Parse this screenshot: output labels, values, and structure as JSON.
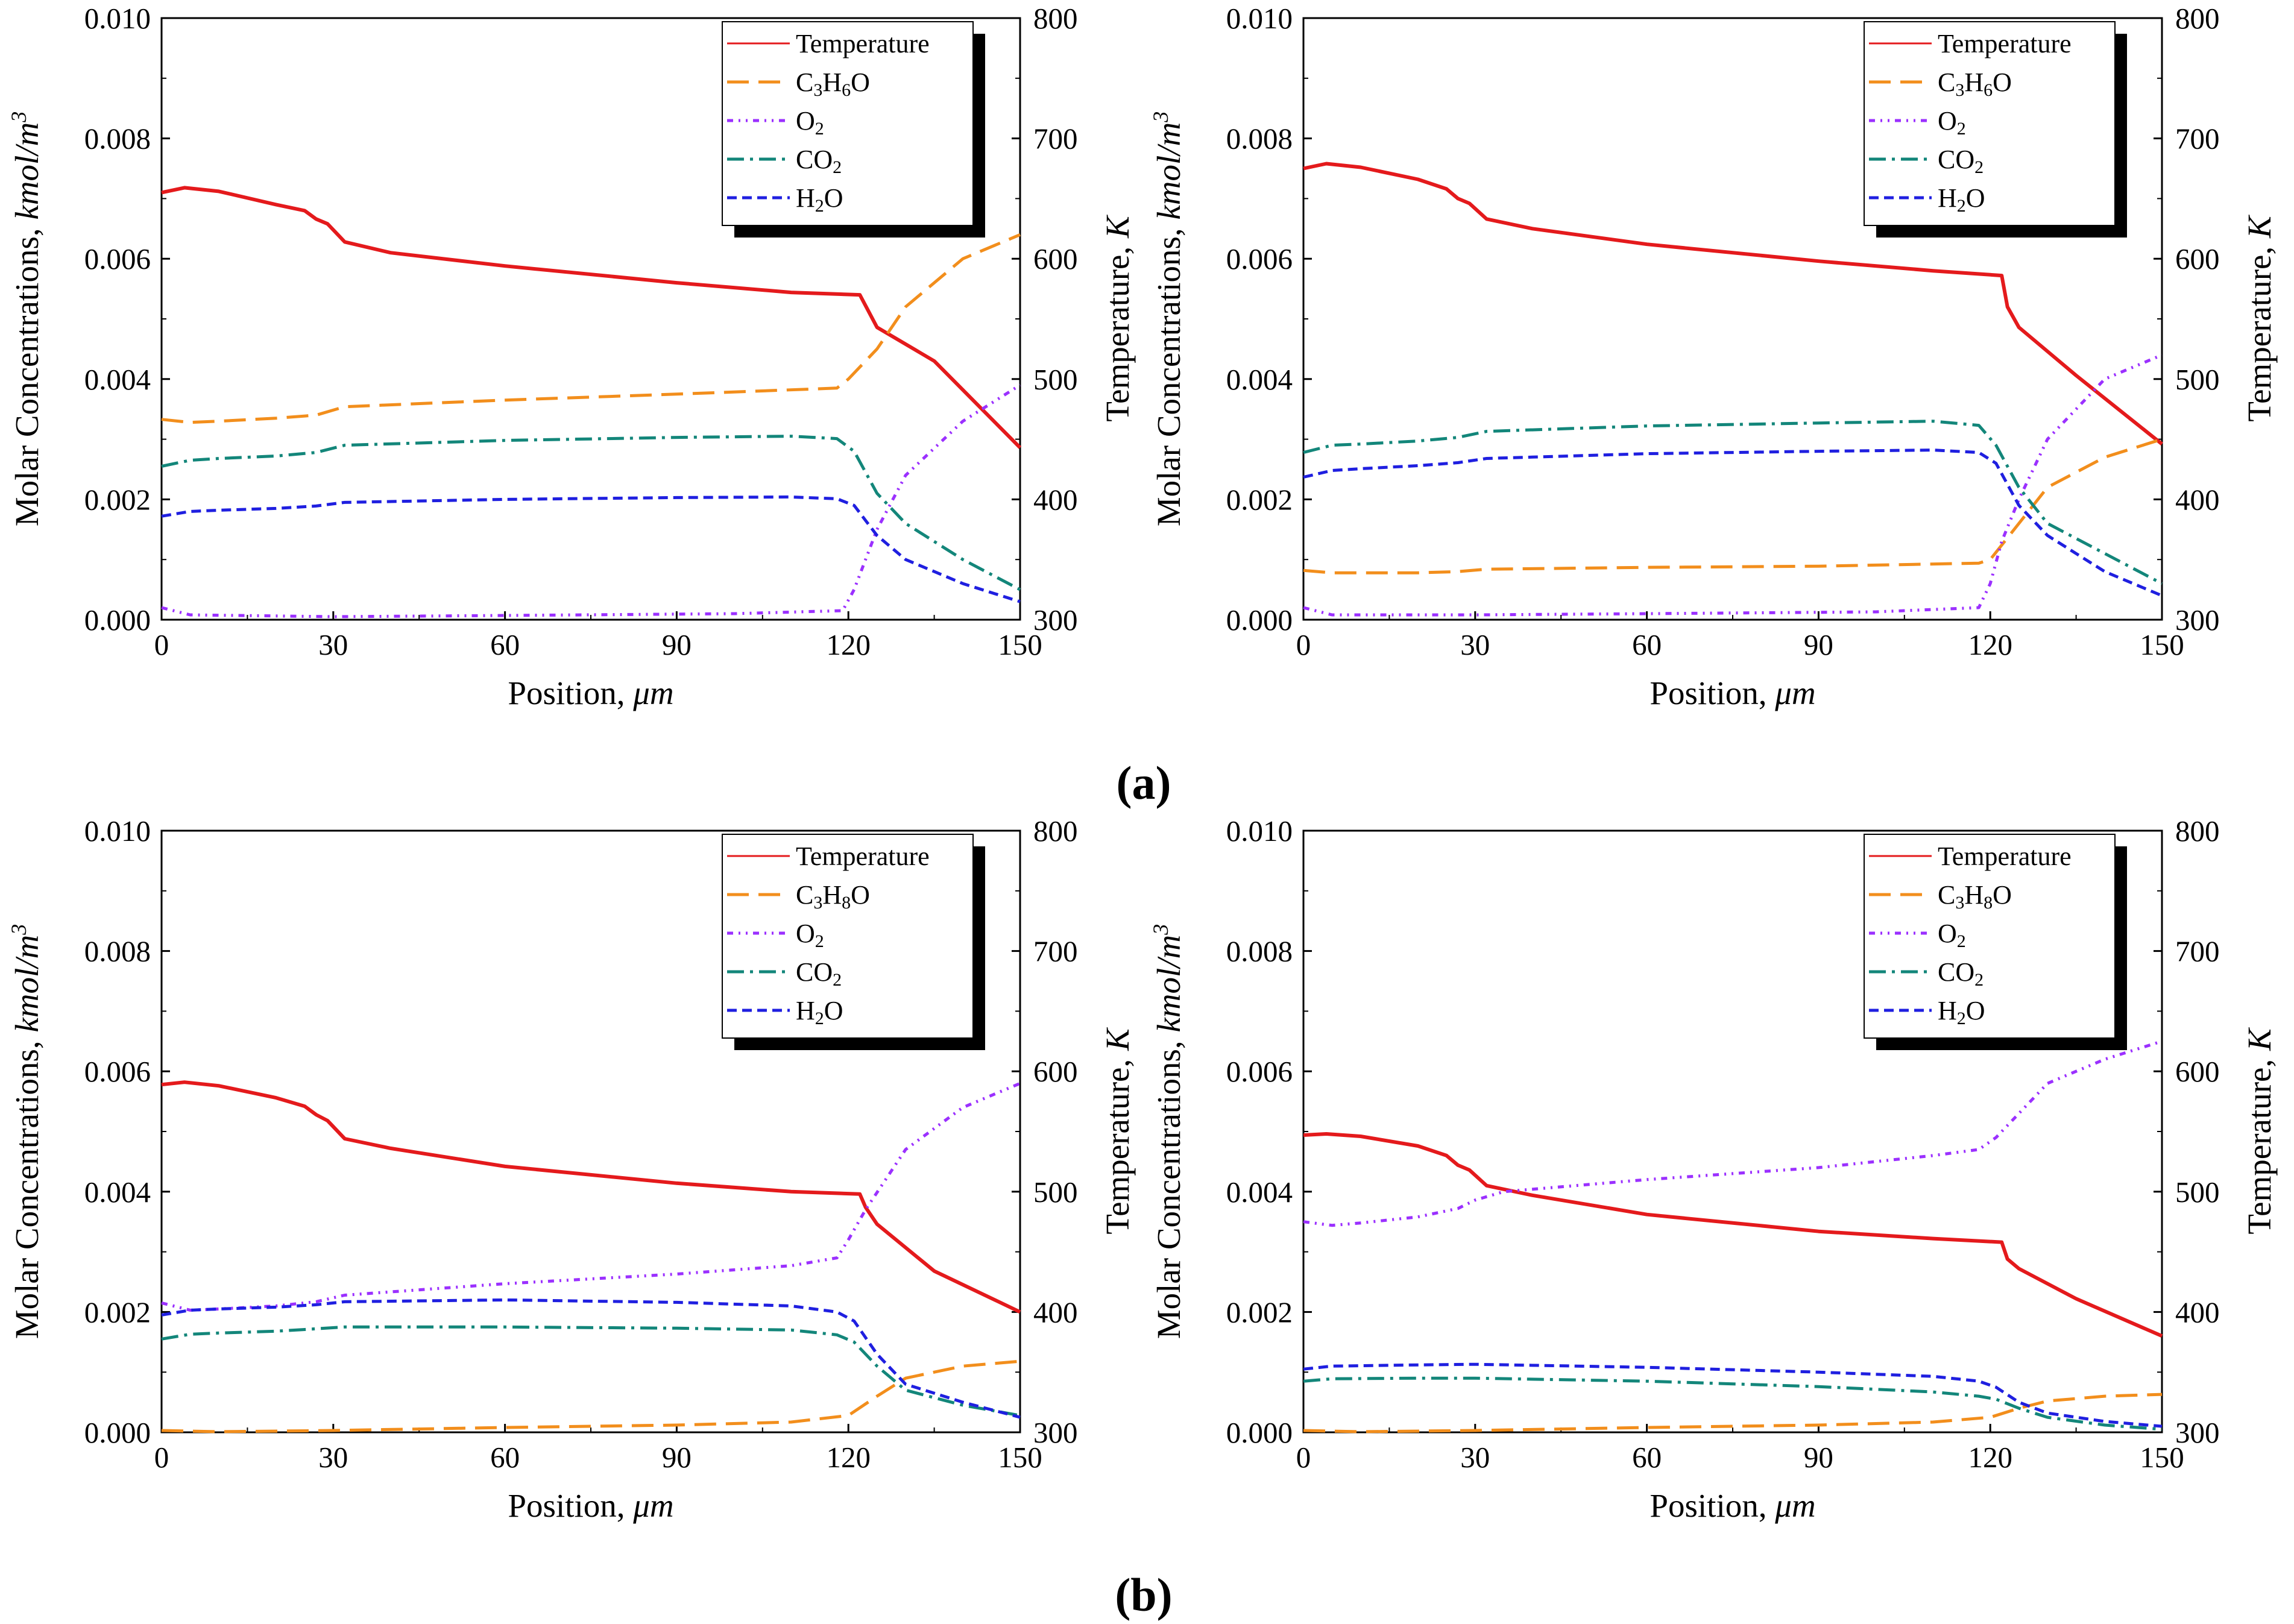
{
  "figure": {
    "label_a": "(a)",
    "label_b": "(b)"
  },
  "colors": {
    "temperature": "#e41a1c",
    "fuel": "#f28e1c",
    "o2": "#9b30ff",
    "co2": "#13867a",
    "h2o": "#1f1fe0"
  },
  "chart_data": [
    {
      "type": "line",
      "panel": "a-left",
      "xlabel_text": "Position, ",
      "xlabel_unit": "μm",
      "ylabel_left_text": "Molar Concentrations, ",
      "ylabel_left_unit": "kmol/m",
      "ylabel_left_sup": "3",
      "ylabel_right_text": "Temperature, ",
      "ylabel_right_unit": "K",
      "xlim": [
        0,
        150
      ],
      "ylim_left": [
        0,
        0.01
      ],
      "ylim_right": [
        300,
        800
      ],
      "xticks": [
        "0",
        "30",
        "60",
        "90",
        "120",
        "150"
      ],
      "yticks_left": [
        "0.000",
        "0.002",
        "0.004",
        "0.006",
        "0.008",
        "0.010"
      ],
      "yticks_right": [
        "300",
        "400",
        "500",
        "600",
        "700",
        "800"
      ],
      "legend": [
        {
          "key": "temperature",
          "label": "Temperature",
          "sub": ""
        },
        {
          "key": "fuel",
          "label": "C3H6O",
          "sub": "C3H6O"
        },
        {
          "key": "o2",
          "label": "O2",
          "sub": "O2"
        },
        {
          "key": "co2",
          "label": "CO2",
          "sub": "CO2"
        },
        {
          "key": "h2o",
          "label": "H2O",
          "sub": "H2O"
        }
      ],
      "series": [
        {
          "key": "temperature",
          "axis": "right",
          "x": [
            0,
            4,
            10,
            20,
            25,
            27,
            29,
            32,
            40,
            60,
            90,
            110,
            122,
            125,
            135,
            150
          ],
          "y": [
            655,
            659,
            656,
            645,
            640,
            633,
            629,
            614,
            605,
            594,
            580,
            572,
            570,
            543,
            515,
            443
          ]
        },
        {
          "key": "fuel",
          "axis": "left",
          "x": [
            0,
            5,
            10,
            20,
            27,
            32,
            60,
            90,
            118,
            120,
            125,
            130,
            140,
            150
          ],
          "y": [
            0.00333,
            0.00328,
            0.0033,
            0.00335,
            0.0034,
            0.00354,
            0.00365,
            0.00375,
            0.00385,
            0.004,
            0.0045,
            0.0052,
            0.006,
            0.0064
          ]
        },
        {
          "key": "o2",
          "axis": "left",
          "x": [
            0,
            5,
            30,
            60,
            100,
            119,
            121,
            125,
            130,
            140,
            150
          ],
          "y": [
            0.0002,
            8e-05,
            5e-05,
            7e-05,
            0.0001,
            0.00015,
            0.0005,
            0.0015,
            0.0024,
            0.0033,
            0.0039
          ]
        },
        {
          "key": "co2",
          "axis": "left",
          "x": [
            0,
            5,
            10,
            20,
            27,
            32,
            60,
            90,
            110,
            118,
            121,
            125,
            130,
            140,
            150
          ],
          "y": [
            0.00255,
            0.00265,
            0.00268,
            0.00272,
            0.00278,
            0.0029,
            0.00298,
            0.00303,
            0.00305,
            0.00301,
            0.0028,
            0.0021,
            0.0016,
            0.001,
            0.0005
          ]
        },
        {
          "key": "h2o",
          "axis": "left",
          "x": [
            0,
            5,
            10,
            20,
            27,
            32,
            60,
            90,
            110,
            118,
            121,
            125,
            130,
            140,
            150
          ],
          "y": [
            0.00172,
            0.0018,
            0.00182,
            0.00185,
            0.00189,
            0.00195,
            0.002,
            0.00203,
            0.00204,
            0.00201,
            0.0019,
            0.0014,
            0.001,
            0.0006,
            0.0003
          ]
        }
      ]
    },
    {
      "type": "line",
      "panel": "a-right",
      "xlabel_text": "Position, ",
      "xlabel_unit": "μm",
      "ylabel_left_text": "Molar Concentrations, ",
      "ylabel_left_unit": "kmol/m",
      "ylabel_left_sup": "3",
      "ylabel_right_text": "Temperature, ",
      "ylabel_right_unit": "K",
      "xlim": [
        0,
        150
      ],
      "ylim_left": [
        0,
        0.01
      ],
      "ylim_right": [
        300,
        800
      ],
      "xticks": [
        "0",
        "30",
        "60",
        "90",
        "120",
        "150"
      ],
      "yticks_left": [
        "0.000",
        "0.002",
        "0.004",
        "0.006",
        "0.008",
        "0.010"
      ],
      "yticks_right": [
        "300",
        "400",
        "500",
        "600",
        "700",
        "800"
      ],
      "legend": [
        {
          "key": "temperature",
          "label": "Temperature",
          "sub": ""
        },
        {
          "key": "fuel",
          "label": "C3H6O",
          "sub": "C3H6O"
        },
        {
          "key": "o2",
          "label": "O2",
          "sub": "O2"
        },
        {
          "key": "co2",
          "label": "CO2",
          "sub": "CO2"
        },
        {
          "key": "h2o",
          "label": "H2O",
          "sub": "H2O"
        }
      ],
      "series": [
        {
          "key": "temperature",
          "axis": "right",
          "x": [
            0,
            4,
            10,
            20,
            25,
            27,
            29,
            32,
            40,
            60,
            90,
            110,
            122,
            123,
            125,
            135,
            150
          ],
          "y": [
            675,
            679,
            676,
            666,
            658,
            650,
            646,
            633,
            625,
            612,
            598,
            590,
            586,
            560,
            543,
            503,
            446
          ]
        },
        {
          "key": "fuel",
          "axis": "left",
          "x": [
            0,
            5,
            20,
            27,
            32,
            60,
            90,
            118,
            120,
            125,
            130,
            140,
            150
          ],
          "y": [
            0.00082,
            0.00078,
            0.00078,
            0.0008,
            0.00084,
            0.00087,
            0.00089,
            0.00094,
            0.001,
            0.0016,
            0.0022,
            0.0027,
            0.003
          ]
        },
        {
          "key": "o2",
          "axis": "left",
          "x": [
            0,
            5,
            30,
            60,
            100,
            118,
            120,
            122,
            125,
            130,
            140,
            150
          ],
          "y": [
            0.0002,
            8e-05,
            8e-05,
            0.0001,
            0.00013,
            0.0002,
            0.0006,
            0.0013,
            0.002,
            0.003,
            0.004,
            0.0044
          ]
        },
        {
          "key": "co2",
          "axis": "left",
          "x": [
            0,
            5,
            10,
            20,
            27,
            32,
            60,
            90,
            110,
            118,
            121,
            125,
            130,
            140,
            150
          ],
          "y": [
            0.00278,
            0.0029,
            0.00292,
            0.00297,
            0.00303,
            0.00313,
            0.00322,
            0.00327,
            0.0033,
            0.00323,
            0.0029,
            0.0022,
            0.0016,
            0.0011,
            0.0006
          ]
        },
        {
          "key": "h2o",
          "axis": "left",
          "x": [
            0,
            5,
            10,
            20,
            27,
            32,
            60,
            90,
            110,
            118,
            121,
            125,
            130,
            140,
            150
          ],
          "y": [
            0.00237,
            0.00248,
            0.00251,
            0.00256,
            0.00261,
            0.00268,
            0.00276,
            0.0028,
            0.00282,
            0.00278,
            0.0026,
            0.0019,
            0.0014,
            0.0008,
            0.0004
          ]
        }
      ]
    },
    {
      "type": "line",
      "panel": "b-left",
      "xlabel_text": "Position, ",
      "xlabel_unit": "μm",
      "ylabel_left_text": "Molar Concentrations, ",
      "ylabel_left_unit": "kmol/m",
      "ylabel_left_sup": "3",
      "ylabel_right_text": "Temperature, ",
      "ylabel_right_unit": "K",
      "xlim": [
        0,
        150
      ],
      "ylim_left": [
        0,
        0.01
      ],
      "ylim_right": [
        300,
        800
      ],
      "xticks": [
        "0",
        "30",
        "60",
        "90",
        "120",
        "150"
      ],
      "yticks_left": [
        "0.000",
        "0.002",
        "0.004",
        "0.006",
        "0.008",
        "0.010"
      ],
      "yticks_right": [
        "300",
        "400",
        "500",
        "600",
        "700",
        "800"
      ],
      "legend": [
        {
          "key": "temperature",
          "label": "Temperature",
          "sub": ""
        },
        {
          "key": "fuel",
          "label": "C3H8O",
          "sub": "C3H8O"
        },
        {
          "key": "o2",
          "label": "O2",
          "sub": "O2"
        },
        {
          "key": "co2",
          "label": "CO2",
          "sub": "CO2"
        },
        {
          "key": "h2o",
          "label": "H2O",
          "sub": "H2O"
        }
      ],
      "series": [
        {
          "key": "temperature",
          "axis": "right",
          "x": [
            0,
            4,
            10,
            20,
            25,
            27,
            29,
            32,
            40,
            60,
            90,
            110,
            122,
            123,
            125,
            135,
            150
          ],
          "y": [
            589,
            591,
            588,
            578,
            571,
            564,
            559,
            544,
            536,
            521,
            507,
            500,
            498,
            487,
            473,
            434,
            400
          ]
        },
        {
          "key": "fuel",
          "axis": "left",
          "x": [
            0,
            10,
            30,
            60,
            90,
            110,
            120,
            125,
            130,
            140,
            150
          ],
          "y": [
            3e-05,
            1e-05,
            3e-05,
            8e-05,
            0.00012,
            0.00017,
            0.00028,
            0.0006,
            0.0009,
            0.0011,
            0.00118
          ]
        },
        {
          "key": "o2",
          "axis": "left",
          "x": [
            0,
            5,
            10,
            20,
            27,
            32,
            60,
            90,
            110,
            118,
            120,
            123,
            130,
            140,
            150
          ],
          "y": [
            0.00215,
            0.00203,
            0.00205,
            0.0021,
            0.00217,
            0.00228,
            0.00247,
            0.00263,
            0.00277,
            0.0029,
            0.0032,
            0.0037,
            0.0047,
            0.0054,
            0.0058
          ]
        },
        {
          "key": "co2",
          "axis": "left",
          "x": [
            0,
            5,
            10,
            20,
            27,
            32,
            60,
            90,
            110,
            118,
            121,
            125,
            130,
            140,
            150
          ],
          "y": [
            0.00155,
            0.00163,
            0.00165,
            0.00168,
            0.00172,
            0.00175,
            0.00175,
            0.00173,
            0.0017,
            0.00162,
            0.0015,
            0.0011,
            0.0007,
            0.00045,
            0.00028
          ]
        },
        {
          "key": "h2o",
          "axis": "left",
          "x": [
            0,
            5,
            10,
            20,
            27,
            32,
            60,
            90,
            110,
            118,
            121,
            125,
            130,
            140,
            150
          ],
          "y": [
            0.00195,
            0.00203,
            0.00205,
            0.00208,
            0.00212,
            0.00217,
            0.0022,
            0.00216,
            0.0021,
            0.002,
            0.00185,
            0.0013,
            0.0008,
            0.0005,
            0.00025
          ]
        }
      ]
    },
    {
      "type": "line",
      "panel": "b-right",
      "xlabel_text": "Position, ",
      "xlabel_unit": "μm",
      "ylabel_left_text": "Molar Concentrations, ",
      "ylabel_left_unit": "kmol/m",
      "ylabel_left_sup": "3",
      "ylabel_right_text": "Temperature, ",
      "ylabel_right_unit": "K",
      "xlim": [
        0,
        150
      ],
      "ylim_left": [
        0,
        0.01
      ],
      "ylim_right": [
        300,
        800
      ],
      "xticks": [
        "0",
        "30",
        "60",
        "90",
        "120",
        "150"
      ],
      "yticks_left": [
        "0.000",
        "0.002",
        "0.004",
        "0.006",
        "0.008",
        "0.010"
      ],
      "yticks_right": [
        "300",
        "400",
        "500",
        "600",
        "700",
        "800"
      ],
      "legend": [
        {
          "key": "temperature",
          "label": "Temperature",
          "sub": ""
        },
        {
          "key": "fuel",
          "label": "C3H8O",
          "sub": "C3H8O"
        },
        {
          "key": "o2",
          "label": "O2",
          "sub": "O2"
        },
        {
          "key": "co2",
          "label": "CO2",
          "sub": "CO2"
        },
        {
          "key": "h2o",
          "label": "H2O",
          "sub": "H2O"
        }
      ],
      "series": [
        {
          "key": "temperature",
          "axis": "right",
          "x": [
            0,
            4,
            10,
            20,
            25,
            27,
            29,
            32,
            40,
            60,
            90,
            110,
            122,
            123,
            125,
            135,
            150
          ],
          "y": [
            547,
            548,
            546,
            538,
            530,
            522,
            518,
            505,
            497,
            481,
            467,
            461,
            458,
            444,
            436,
            411,
            380
          ]
        },
        {
          "key": "fuel",
          "axis": "left",
          "x": [
            0,
            10,
            30,
            60,
            90,
            110,
            120,
            125,
            130,
            140,
            150
          ],
          "y": [
            3e-05,
            1e-05,
            3e-05,
            8e-05,
            0.00012,
            0.00017,
            0.00025,
            0.0004,
            0.00052,
            0.0006,
            0.00063
          ]
        },
        {
          "key": "o2",
          "axis": "left",
          "x": [
            0,
            5,
            10,
            20,
            27,
            30,
            35,
            60,
            90,
            110,
            118,
            121,
            125,
            130,
            140,
            150
          ],
          "y": [
            0.0035,
            0.00344,
            0.00348,
            0.00358,
            0.00372,
            0.00386,
            0.004,
            0.0042,
            0.0044,
            0.0046,
            0.0047,
            0.0049,
            0.0053,
            0.0058,
            0.0062,
            0.0065
          ]
        },
        {
          "key": "co2",
          "axis": "left",
          "x": [
            0,
            5,
            20,
            30,
            60,
            90,
            110,
            118,
            121,
            125,
            130,
            140,
            150
          ],
          "y": [
            0.00085,
            0.00089,
            0.0009,
            0.0009,
            0.00085,
            0.00076,
            0.00067,
            0.0006,
            0.00055,
            0.0004,
            0.00025,
            0.00012,
            5e-05
          ]
        },
        {
          "key": "h2o",
          "axis": "left",
          "x": [
            0,
            5,
            20,
            30,
            60,
            90,
            110,
            118,
            121,
            125,
            130,
            140,
            150
          ],
          "y": [
            0.00105,
            0.0011,
            0.00112,
            0.00113,
            0.00108,
            0.001,
            0.00093,
            0.00085,
            0.00075,
            0.0005,
            0.00032,
            0.00018,
            0.0001
          ]
        }
      ]
    }
  ]
}
